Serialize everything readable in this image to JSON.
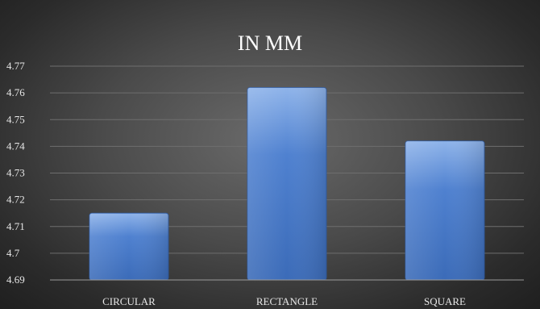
{
  "chart_data": {
    "type": "bar",
    "title": "IN MM",
    "categories": [
      "CIRCULAR",
      "RECTANGLE",
      "SQUARE"
    ],
    "values": [
      4.715,
      4.762,
      4.742
    ],
    "ylim": [
      4.69,
      4.77
    ],
    "yticks": [
      "4.69",
      "4.7",
      "4.71",
      "4.72",
      "4.73",
      "4.74",
      "4.75",
      "4.76",
      "4.77"
    ],
    "grid": true,
    "legend": "none",
    "colors": {
      "bar_top": "#8fb4ea",
      "bar_mid": "#4f81d0",
      "bar_bottom": "#3b6bb8",
      "grid": "#6e6e6e",
      "axis": "#9a9a9a"
    }
  }
}
